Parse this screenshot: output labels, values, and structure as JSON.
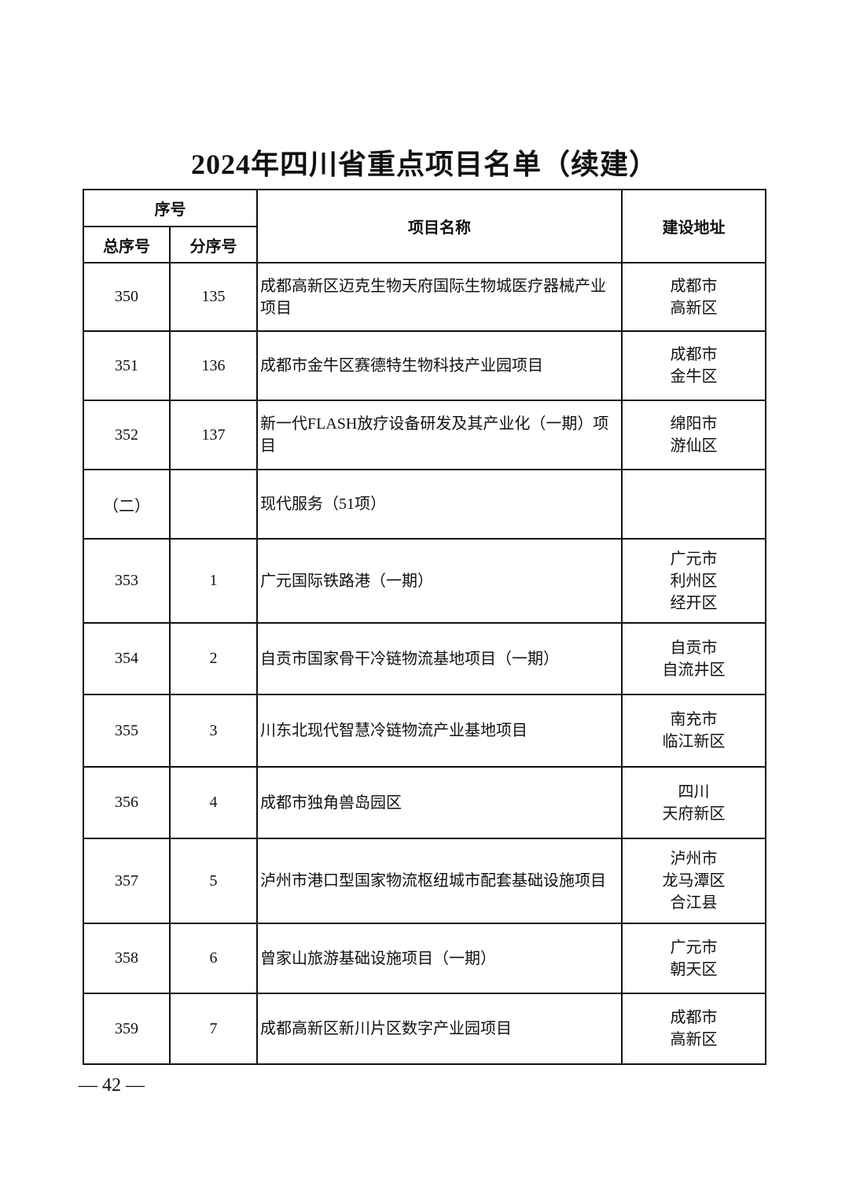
{
  "title": "2024年四川省重点项目名单（续建）",
  "header": {
    "seq_group": "序号",
    "total_seq": "总序号",
    "sub_seq": "分序号",
    "project_name": "项目名称",
    "location": "建设地址"
  },
  "rows": [
    {
      "total": "350",
      "sub": "135",
      "name": "成都高新区迈克生物天府国际生物城医疗器械产业项目",
      "location": "成都市\n高新区"
    },
    {
      "total": "351",
      "sub": "136",
      "name": "成都市金牛区赛德特生物科技产业园项目",
      "location": "成都市\n金牛区"
    },
    {
      "total": "352",
      "sub": "137",
      "name": "新一代FLASH放疗设备研发及其产业化（一期）项目",
      "location": "绵阳市\n游仙区"
    },
    {
      "total": "（二）",
      "sub": "",
      "name": "现代服务（51项）",
      "location": ""
    },
    {
      "total": "353",
      "sub": "1",
      "name": "广元国际铁路港（一期）",
      "location": "广元市\n利州区\n经开区"
    },
    {
      "total": "354",
      "sub": "2",
      "name": "自贡市国家骨干冷链物流基地项目（一期）",
      "location": "自贡市\n自流井区"
    },
    {
      "total": "355",
      "sub": "3",
      "name": "川东北现代智慧冷链物流产业基地项目",
      "location": "南充市\n临江新区"
    },
    {
      "total": "356",
      "sub": "4",
      "name": "成都市独角兽岛园区",
      "location": "四川\n天府新区"
    },
    {
      "total": "357",
      "sub": "5",
      "name": "泸州市港口型国家物流枢纽城市配套基础设施项目",
      "location": "泸州市\n龙马潭区\n合江县"
    },
    {
      "total": "358",
      "sub": "6",
      "name": "曾家山旅游基础设施项目（一期）",
      "location": "广元市\n朝天区"
    },
    {
      "total": "359",
      "sub": "7",
      "name": "成都高新区新川片区数字产业园项目",
      "location": "成都市\n高新区"
    }
  ],
  "footer": {
    "page_number": "— 42 —"
  }
}
